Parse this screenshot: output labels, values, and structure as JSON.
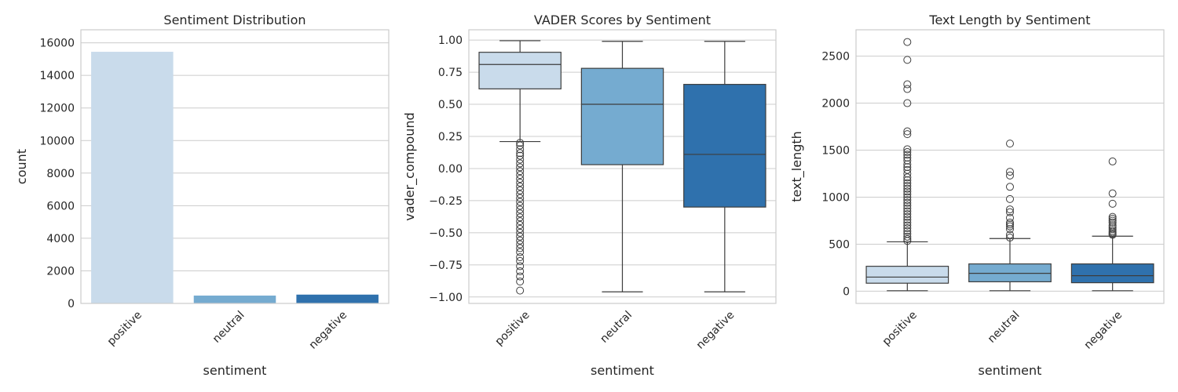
{
  "chart_data": [
    {
      "type": "bar",
      "title": "Sentiment Distribution",
      "xlabel": "sentiment",
      "ylabel": "count",
      "categories": [
        "positive",
        "neutral",
        "negative"
      ],
      "values": [
        15450,
        480,
        540
      ],
      "colors": [
        "#c9dbeb",
        "#75abd0",
        "#2f71ad"
      ],
      "ylim": [
        0,
        16800
      ],
      "yticks": [
        0,
        2000,
        4000,
        6000,
        8000,
        10000,
        12000,
        14000,
        16000
      ],
      "ytick_labels": [
        "0",
        "2000",
        "4000",
        "6000",
        "8000",
        "10000",
        "12000",
        "14000",
        "16000"
      ],
      "grid": true
    },
    {
      "type": "box",
      "title": "VADER Scores by Sentiment",
      "xlabel": "sentiment",
      "ylabel": "vader_compound",
      "categories": [
        "positive",
        "neutral",
        "negative"
      ],
      "colors": [
        "#c9dbeb",
        "#75abd0",
        "#2f71ad"
      ],
      "ylim": [
        -1.05,
        1.08
      ],
      "yticks": [
        -1.0,
        -0.75,
        -0.5,
        -0.25,
        0.0,
        0.25,
        0.5,
        0.75,
        1.0
      ],
      "ytick_labels": [
        "−1.00",
        "−0.75",
        "−0.50",
        "−0.25",
        "0.00",
        "0.25",
        "0.50",
        "0.75",
        "1.00"
      ],
      "grid": true,
      "boxes": [
        {
          "whislo": 0.21,
          "q1": 0.62,
          "med": 0.81,
          "q3": 0.905,
          "whishi": 0.995,
          "fliers": [
            0.2,
            0.18,
            0.15,
            0.12,
            0.1,
            0.07,
            0.04,
            0.01,
            -0.02,
            -0.05,
            -0.08,
            -0.11,
            -0.14,
            -0.17,
            -0.2,
            -0.23,
            -0.26,
            -0.29,
            -0.32,
            -0.35,
            -0.38,
            -0.41,
            -0.44,
            -0.47,
            -0.5,
            -0.53,
            -0.56,
            -0.59,
            -0.62,
            -0.65,
            -0.69,
            -0.72,
            -0.76,
            -0.8,
            -0.84,
            -0.88,
            -0.95
          ]
        },
        {
          "whislo": -0.96,
          "q1": 0.03,
          "med": 0.5,
          "q3": 0.78,
          "whishi": 0.99,
          "fliers": []
        },
        {
          "whislo": -0.96,
          "q1": -0.3,
          "med": 0.11,
          "q3": 0.655,
          "whishi": 0.99,
          "fliers": []
        }
      ]
    },
    {
      "type": "box",
      "title": "Text Length by Sentiment",
      "xlabel": "sentiment",
      "ylabel": "text_length",
      "categories": [
        "positive",
        "neutral",
        "negative"
      ],
      "colors": [
        "#c9dbeb",
        "#75abd0",
        "#2f71ad"
      ],
      "ylim": [
        -130,
        2780
      ],
      "yticks": [
        0,
        500,
        1000,
        1500,
        2000,
        2500
      ],
      "ytick_labels": [
        "0",
        "500",
        "1000",
        "1500",
        "2000",
        "2500"
      ],
      "grid": true,
      "boxes": [
        {
          "whislo": 5,
          "q1": 85,
          "med": 150,
          "q3": 265,
          "whishi": 525,
          "fliers": [
            2650,
            2460,
            2200,
            2150,
            2000,
            1700,
            1670,
            1510,
            1480,
            1450,
            1420,
            1390,
            1350,
            1320,
            1290,
            1250,
            1210,
            1180,
            1150,
            1120,
            1090,
            1060,
            1030,
            1000,
            970,
            940,
            910,
            880,
            850,
            820,
            790,
            760,
            730,
            700,
            670,
            640,
            610,
            580,
            555,
            535
          ]
        },
        {
          "whislo": 5,
          "q1": 100,
          "med": 190,
          "q3": 290,
          "whishi": 560,
          "fliers": [
            1570,
            1270,
            1230,
            1110,
            980,
            870,
            840,
            780,
            730,
            710,
            690,
            660,
            600,
            570
          ]
        },
        {
          "whislo": 5,
          "q1": 90,
          "med": 165,
          "q3": 290,
          "whishi": 585,
          "fliers": [
            1380,
            1040,
            930,
            790,
            770,
            750,
            730,
            700,
            680,
            660,
            640,
            625,
            610,
            600
          ]
        }
      ]
    }
  ]
}
